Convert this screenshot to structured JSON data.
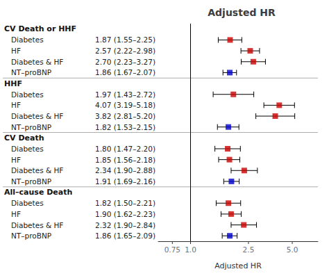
{
  "chart_data": {
    "type": "forest",
    "title": "Adjusted HR",
    "xlabel": "Adjusted HR",
    "log": "x",
    "xlim": [
      0.6,
      7.5
    ],
    "xticks": [
      0.75,
      {
        "value": 1.0,
        "label": "1.0"
      },
      2.5,
      {
        "value": 5.0,
        "label": "5.0"
      }
    ],
    "reference_line": 1.0,
    "sections": [
      {
        "header": "CV Death or HHF",
        "rows": [
          {
            "label": "Diabetes",
            "ci_label": "1.87 (1.55–2.25)",
            "est": 1.87,
            "lo": 1.55,
            "hi": 2.25,
            "color": "#cc0000"
          },
          {
            "label": "HF",
            "ci_label": "2.57 (2.22–2.98)",
            "est": 2.57,
            "lo": 2.22,
            "hi": 2.98,
            "color": "#cc0000"
          },
          {
            "label": "Diabetes & HF",
            "ci_label": "2.70 (2.23–3.27)",
            "est": 2.7,
            "lo": 2.23,
            "hi": 3.27,
            "color": "#cc0000"
          },
          {
            "label": "NT–proBNP",
            "ci_label": "1.86 (1.67–2.07)",
            "est": 1.86,
            "lo": 1.67,
            "hi": 2.07,
            "color": "#0000cc"
          }
        ]
      },
      {
        "header": "HHF",
        "rows": [
          {
            "label": "Diabetes",
            "ci_label": "1.97 (1.43–2.72)",
            "est": 1.97,
            "lo": 1.43,
            "hi": 2.72,
            "color": "#cc0000"
          },
          {
            "label": "HF",
            "ci_label": "4.07 (3.19–5.18)",
            "est": 4.07,
            "lo": 3.19,
            "hi": 5.18,
            "color": "#cc0000"
          },
          {
            "label": "Diabetes & HF",
            "ci_label": "3.82 (2.81–5.20)",
            "est": 3.82,
            "lo": 2.81,
            "hi": 5.2,
            "color": "#cc0000"
          },
          {
            "label": "NT–proBNP",
            "ci_label": "1.82 (1.53–2.15)",
            "est": 1.82,
            "lo": 1.53,
            "hi": 2.15,
            "color": "#0000cc"
          }
        ]
      },
      {
        "header": "CV Death",
        "rows": [
          {
            "label": "Diabetes",
            "ci_label": "1.80 (1.47–2.20)",
            "est": 1.8,
            "lo": 1.47,
            "hi": 2.2,
            "color": "#cc0000"
          },
          {
            "label": "HF",
            "ci_label": "1.85 (1.56–2.18)",
            "est": 1.85,
            "lo": 1.56,
            "hi": 2.18,
            "color": "#cc0000"
          },
          {
            "label": "Diabetes & HF",
            "ci_label": "2.34 (1.90–2.88)",
            "est": 2.34,
            "lo": 1.9,
            "hi": 2.88,
            "color": "#cc0000"
          },
          {
            "label": "NT–proBNP",
            "ci_label": "1.91 (1.69–2.16)",
            "est": 1.91,
            "lo": 1.69,
            "hi": 2.16,
            "color": "#0000cc"
          }
        ]
      },
      {
        "header": "All–cause Death",
        "rows": [
          {
            "label": "Diabetes",
            "ci_label": "1.82 (1.50–2.21)",
            "est": 1.82,
            "lo": 1.5,
            "hi": 2.21,
            "color": "#cc0000"
          },
          {
            "label": "HF",
            "ci_label": "1.90 (1.62–2.23)",
            "est": 1.9,
            "lo": 1.62,
            "hi": 2.23,
            "color": "#cc0000"
          },
          {
            "label": "Diabetes & HF",
            "ci_label": "2.32 (1.90–2.84)",
            "est": 2.32,
            "lo": 1.9,
            "hi": 2.84,
            "color": "#cc0000"
          },
          {
            "label": "NT–proBNP",
            "ci_label": "1.86 (1.65–2.09)",
            "est": 1.86,
            "lo": 1.65,
            "hi": 2.09,
            "color": "#0000cc"
          }
        ]
      }
    ]
  }
}
